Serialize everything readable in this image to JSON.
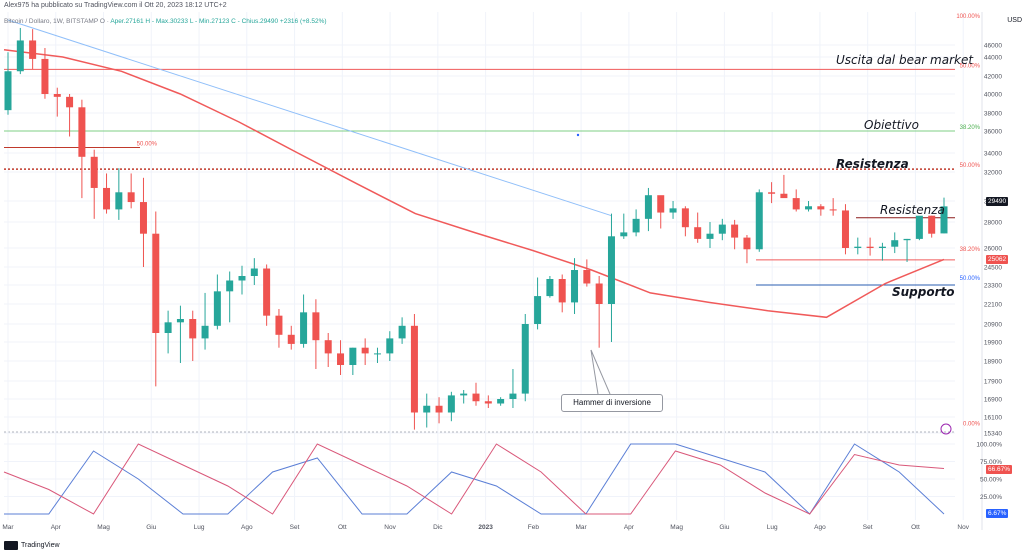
{
  "header": {
    "title": "Alex975 ha pubblicato su TradingView.com il Ott 20, 2023 18:12 UTC+2",
    "symbol_line": "Bitcoin / Dollaro, 1W, BITSTAMP  O",
    "ohlc": "Aper.27161  H - Max.30233  L - Min.27123  C - Chius.29490  +2316 (+8.52%)",
    "currency": "USD"
  },
  "footer": {
    "brand": "TradingView"
  },
  "annotations": [
    {
      "text": "Uscita dal bear market",
      "color": "#5b9bd5"
    },
    {
      "text": "Obiettivo",
      "color": "#5bc0c9"
    },
    {
      "text": "Resistenza",
      "color": "#c0392b"
    },
    {
      "text": "Resistenza",
      "color": "#c0392b"
    },
    {
      "text": "Supporto",
      "color": "#2a5db0"
    }
  ],
  "callout": {
    "text": "Hammer di inversione"
  },
  "price_tags": {
    "last": "29490",
    "support": "25062",
    "osc_high": "66.67%",
    "osc_low": "6.67%"
  },
  "colors": {
    "up": "#26a69a",
    "down": "#ef5350",
    "sma": "#f05a5a",
    "trend": "#90bff9"
  },
  "chart_data": {
    "type": "candlestick",
    "timeframe": "1W",
    "x_labels": [
      "Mar",
      "Apr",
      "Mag",
      "Giu",
      "Lug",
      "Ago",
      "Set",
      "Ott",
      "Nov",
      "Dic",
      "2023",
      "Feb",
      "Mar",
      "Apr",
      "Mag",
      "Giu",
      "Lug",
      "Ago",
      "Set",
      "Ott",
      "Nov"
    ],
    "y_ticks": [
      15340,
      16100,
      16900,
      17900,
      18900,
      19900,
      20900,
      22100,
      23300,
      24500,
      26000,
      28000,
      30000,
      32000,
      34000,
      36000,
      38000,
      40000,
      42000,
      44000,
      46000
    ],
    "fib_labels": [
      {
        "text": "100.00%",
        "price": 48200
      },
      {
        "text": "50.00%",
        "price": 42700
      },
      {
        "text": "38.20%",
        "price": 36000
      },
      {
        "text": "50.00%",
        "price": 32300
      },
      {
        "text": "50.00%",
        "price": 34500
      },
      {
        "text": "38.20%",
        "price": 25600
      },
      {
        "text": "50.00%",
        "price": 23500
      },
      {
        "text": "0.00%",
        "price": 15600
      }
    ],
    "candles": [
      [
        38300,
        44800,
        37800,
        42500
      ],
      [
        42500,
        47500,
        42200,
        46400
      ],
      [
        46400,
        47400,
        42700,
        43800
      ],
      [
        43800,
        45500,
        39500,
        40000
      ],
      [
        40000,
        40700,
        37600,
        39700
      ],
      [
        39700,
        40000,
        35500,
        38600
      ],
      [
        38600,
        39400,
        30200,
        33600
      ],
      [
        33600,
        34300,
        28300,
        30900
      ],
      [
        30900,
        31900,
        28800,
        29200
      ],
      [
        29200,
        32400,
        28200,
        30600
      ],
      [
        30600,
        31900,
        29300,
        29900
      ],
      [
        29900,
        31600,
        24500,
        27100
      ],
      [
        27100,
        29000,
        17600,
        20400
      ],
      [
        20400,
        21700,
        19300,
        21000
      ],
      [
        21000,
        22000,
        18800,
        21200
      ],
      [
        21200,
        21700,
        18900,
        20100
      ],
      [
        20100,
        22800,
        19500,
        20800
      ],
      [
        20800,
        24000,
        20600,
        22900
      ],
      [
        22900,
        24200,
        21000,
        23600
      ],
      [
        23600,
        24600,
        22700,
        23900
      ],
      [
        23900,
        25200,
        23300,
        24400
      ],
      [
        24400,
        24700,
        20800,
        21400
      ],
      [
        21400,
        21800,
        19600,
        20300
      ],
      [
        20300,
        20800,
        19500,
        19800
      ],
      [
        19800,
        22700,
        19600,
        21600
      ],
      [
        21600,
        22400,
        18500,
        20000
      ],
      [
        20000,
        20400,
        18600,
        19300
      ],
      [
        19300,
        20000,
        18200,
        18700
      ],
      [
        18700,
        19600,
        18200,
        19600
      ],
      [
        19600,
        20100,
        18700,
        19300
      ],
      [
        19300,
        19600,
        18800,
        19300
      ],
      [
        19300,
        20500,
        18900,
        20100
      ],
      [
        20100,
        21300,
        19800,
        20800
      ],
      [
        20800,
        21500,
        15500,
        16300
      ],
      [
        16300,
        17200,
        15600,
        16600
      ],
      [
        16600,
        17000,
        15800,
        16300
      ],
      [
        16300,
        17300,
        15900,
        17100
      ],
      [
        17100,
        17400,
        16700,
        17200
      ],
      [
        17200,
        17800,
        16600,
        16800
      ],
      [
        16800,
        17100,
        16500,
        16700
      ],
      [
        16700,
        17000,
        16600,
        16900
      ],
      [
        16900,
        18500,
        16500,
        17200
      ],
      [
        17200,
        21500,
        16800,
        20900
      ],
      [
        20900,
        23800,
        20600,
        22600
      ],
      [
        22600,
        23900,
        22500,
        23700
      ],
      [
        23700,
        24000,
        21600,
        22200
      ],
      [
        22200,
        25200,
        21500,
        24300
      ],
      [
        24300,
        25100,
        23200,
        23400
      ],
      [
        23400,
        23900,
        19600,
        22100
      ],
      [
        22100,
        28800,
        19900,
        26900
      ],
      [
        26900,
        28800,
        26700,
        27200
      ],
      [
        27200,
        29200,
        26900,
        28300
      ],
      [
        28300,
        30900,
        27300,
        30400
      ],
      [
        30400,
        30200,
        27500,
        28900
      ],
      [
        28900,
        30000,
        28300,
        29300
      ],
      [
        29300,
        29500,
        26900,
        27600
      ],
      [
        27600,
        28900,
        26400,
        26700
      ],
      [
        26700,
        28000,
        26000,
        27100
      ],
      [
        27100,
        28300,
        26600,
        27800
      ],
      [
        27800,
        28200,
        25900,
        26800
      ],
      [
        26800,
        27000,
        24800,
        25900
      ],
      [
        25900,
        30800,
        25700,
        30600
      ],
      [
        30600,
        31300,
        29800,
        30500
      ],
      [
        30500,
        31800,
        30300,
        30200
      ],
      [
        30200,
        30800,
        29000,
        29200
      ],
      [
        29200,
        30000,
        29000,
        29500
      ],
      [
        29500,
        29700,
        28600,
        29200
      ],
      [
        29200,
        30200,
        28600,
        29100
      ],
      [
        29100,
        29700,
        25500,
        26000
      ],
      [
        26000,
        26800,
        25500,
        26100
      ],
      [
        26100,
        26800,
        25400,
        26000
      ],
      [
        26000,
        26400,
        25000,
        26100
      ],
      [
        26100,
        27200,
        25600,
        26600
      ],
      [
        26600,
        26700,
        24900,
        26700
      ],
      [
        26700,
        28500,
        26600,
        28600
      ],
      [
        28600,
        28600,
        26800,
        27100
      ],
      [
        27123,
        30233,
        27123,
        29490
      ]
    ],
    "sma": [
      45200,
      44000,
      42500,
      40000,
      37000,
      34000,
      31200,
      28800,
      27200,
      25800,
      24300,
      22800,
      22200,
      21700,
      21300,
      23400,
      25100
    ],
    "trendline": {
      "from": [
        0,
        49000
      ],
      "to": [
        49,
        28600
      ]
    },
    "horizontal_levels": [
      {
        "price": 42700,
        "color": "#f05a5a",
        "style": "solid"
      },
      {
        "price": 36000,
        "color": "#7fcf85",
        "style": "solid"
      },
      {
        "price": 32300,
        "color": "#c0392b",
        "style": "dotted"
      },
      {
        "price": 34500,
        "color": "#c0392b",
        "style": "solid",
        "partial": true
      },
      {
        "price": 28400,
        "color": "#8b1a1a",
        "style": "solid",
        "partial": true
      },
      {
        "price": 25062,
        "color": "#f05a5a",
        "style": "solid",
        "partial": true
      },
      {
        "price": 23300,
        "color": "#2a5db0",
        "style": "solid",
        "partial": true
      }
    ],
    "oscillator": {
      "y_ticks": [
        "100.00%",
        "75.00%",
        "50.00%",
        "25.00%"
      ],
      "blue": [
        0,
        0,
        90,
        50,
        0,
        0,
        60,
        80,
        0,
        0,
        60,
        40,
        0,
        0,
        100,
        100,
        80,
        60,
        0,
        100,
        60,
        0
      ],
      "red": [
        60,
        35,
        0,
        100,
        70,
        40,
        0,
        100,
        70,
        40,
        0,
        100,
        60,
        0,
        0,
        90,
        70,
        30,
        0,
        85,
        70,
        65
      ]
    }
  }
}
